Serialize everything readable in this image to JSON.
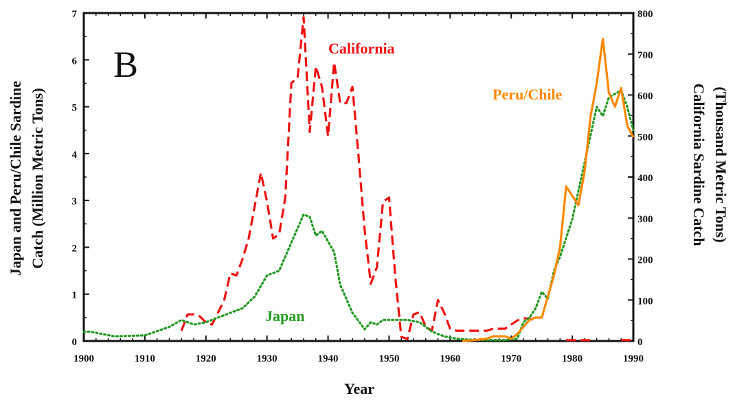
{
  "chart_data": {
    "type": "line",
    "panel_label": "B",
    "xlabel": "Year",
    "ylabel_left": "Japan and Peru/Chile Sardine Catch (Million Metric Tons)",
    "ylabel_right": "California Sardine Catch (Thousand Metric Tons)",
    "xlim": [
      1900,
      1990
    ],
    "ylim_left": [
      0,
      7
    ],
    "ylim_right": [
      0,
      800
    ],
    "x_ticks": [
      "1900",
      "1910",
      "1920",
      "1930",
      "1940",
      "1950",
      "1960",
      "1970",
      "1980",
      "1990"
    ],
    "y_ticks_left": [
      "0",
      "1",
      "2",
      "3",
      "4",
      "5",
      "6",
      "7"
    ],
    "y_ticks_right": [
      "0",
      "100",
      "200",
      "300",
      "400",
      "500",
      "600",
      "700",
      "800"
    ],
    "grid": false,
    "series": [
      {
        "name": "California",
        "axis": "right",
        "style": "dashed",
        "color": "#ee1111",
        "points": [
          [
            1916,
            25
          ],
          [
            1917,
            65
          ],
          [
            1918,
            65
          ],
          [
            1919,
            60
          ],
          [
            1920,
            45
          ],
          [
            1921,
            40
          ],
          [
            1922,
            70
          ],
          [
            1923,
            100
          ],
          [
            1924,
            165
          ],
          [
            1925,
            160
          ],
          [
            1926,
            200
          ],
          [
            1927,
            250
          ],
          [
            1928,
            330
          ],
          [
            1929,
            410
          ],
          [
            1930,
            340
          ],
          [
            1931,
            250
          ],
          [
            1932,
            260
          ],
          [
            1933,
            350
          ],
          [
            1934,
            630
          ],
          [
            1935,
            640
          ],
          [
            1936,
            790
          ],
          [
            1937,
            510
          ],
          [
            1938,
            670
          ],
          [
            1939,
            620
          ],
          [
            1940,
            500
          ],
          [
            1941,
            680
          ],
          [
            1942,
            580
          ],
          [
            1943,
            580
          ],
          [
            1944,
            620
          ],
          [
            1945,
            450
          ],
          [
            1946,
            270
          ],
          [
            1947,
            140
          ],
          [
            1948,
            180
          ],
          [
            1949,
            340
          ],
          [
            1950,
            350
          ],
          [
            1951,
            160
          ],
          [
            1952,
            10
          ],
          [
            1953,
            5
          ],
          [
            1954,
            65
          ],
          [
            1955,
            70
          ],
          [
            1956,
            35
          ],
          [
            1957,
            25
          ],
          [
            1958,
            100
          ],
          [
            1959,
            70
          ],
          [
            1960,
            30
          ],
          [
            1961,
            25
          ],
          [
            1962,
            25
          ],
          [
            1963,
            25
          ],
          [
            1964,
            25
          ],
          [
            1965,
            25
          ],
          [
            1966,
            25
          ],
          [
            1967,
            30
          ],
          [
            1968,
            30
          ],
          [
            1969,
            30
          ],
          [
            1970,
            40
          ],
          [
            1971,
            50
          ],
          [
            1972,
            55
          ],
          [
            1973,
            55
          ],
          [
            1974,
            50
          ]
        ]
      },
      {
        "name": "Japan",
        "axis": "left",
        "style": "dotted",
        "color": "#229922",
        "points": [
          [
            1900,
            0.2
          ],
          [
            1901,
            0.2
          ],
          [
            1903,
            0.15
          ],
          [
            1905,
            0.1
          ],
          [
            1910,
            0.12
          ],
          [
            1914,
            0.3
          ],
          [
            1916,
            0.45
          ],
          [
            1918,
            0.35
          ],
          [
            1920,
            0.4
          ],
          [
            1923,
            0.55
          ],
          [
            1926,
            0.7
          ],
          [
            1928,
            0.95
          ],
          [
            1930,
            1.4
          ],
          [
            1932,
            1.5
          ],
          [
            1934,
            2.1
          ],
          [
            1936,
            2.7
          ],
          [
            1937,
            2.65
          ],
          [
            1938,
            2.25
          ],
          [
            1939,
            2.35
          ],
          [
            1941,
            1.9
          ],
          [
            1942,
            1.2
          ],
          [
            1944,
            0.6
          ],
          [
            1946,
            0.25
          ],
          [
            1947,
            0.4
          ],
          [
            1948,
            0.35
          ],
          [
            1949,
            0.45
          ],
          [
            1951,
            0.45
          ],
          [
            1953,
            0.45
          ],
          [
            1955,
            0.4
          ],
          [
            1957,
            0.2
          ],
          [
            1959,
            0.1
          ],
          [
            1961,
            0.05
          ],
          [
            1963,
            0.03
          ],
          [
            1966,
            0.02
          ],
          [
            1969,
            0.02
          ],
          [
            1971,
            0.05
          ],
          [
            1972,
            0.4
          ],
          [
            1973,
            0.5
          ],
          [
            1974,
            0.7
          ],
          [
            1975,
            1.05
          ],
          [
            1976,
            0.9
          ],
          [
            1977,
            1.5
          ],
          [
            1978,
            1.8
          ],
          [
            1980,
            2.6
          ],
          [
            1982,
            3.8
          ],
          [
            1984,
            5.0
          ],
          [
            1985,
            4.8
          ],
          [
            1986,
            5.2
          ],
          [
            1988,
            5.35
          ],
          [
            1989,
            5.0
          ],
          [
            1990,
            4.5
          ]
        ]
      },
      {
        "name": "Peru/Chile",
        "axis": "left",
        "style": "solid",
        "color": "#ff8800",
        "points": [
          [
            1962,
            0.0
          ],
          [
            1964,
            0.02
          ],
          [
            1966,
            0.05
          ],
          [
            1967,
            0.1
          ],
          [
            1969,
            0.1
          ],
          [
            1970,
            0.05
          ],
          [
            1971,
            0.15
          ],
          [
            1972,
            0.3
          ],
          [
            1973,
            0.45
          ],
          [
            1974,
            0.5
          ],
          [
            1975,
            0.5
          ],
          [
            1977,
            1.4
          ],
          [
            1978,
            2.0
          ],
          [
            1979,
            3.3
          ],
          [
            1980,
            3.1
          ],
          [
            1981,
            2.9
          ],
          [
            1982,
            3.6
          ],
          [
            1983,
            4.8
          ],
          [
            1984,
            5.5
          ],
          [
            1985,
            6.45
          ],
          [
            1986,
            5.3
          ],
          [
            1987,
            5.0
          ],
          [
            1988,
            5.4
          ],
          [
            1989,
            4.6
          ],
          [
            1990,
            4.35
          ]
        ]
      }
    ],
    "annotations": [
      {
        "text": "California",
        "color": "#ee1111"
      },
      {
        "text": "Japan",
        "color": "#229922"
      },
      {
        "text": "Peru/Chile",
        "color": "#ff8800"
      }
    ],
    "extra_marks": {
      "california_late_segments": [
        [
          1979,
          1983
        ],
        [
          1988,
          1990
        ]
      ]
    }
  }
}
